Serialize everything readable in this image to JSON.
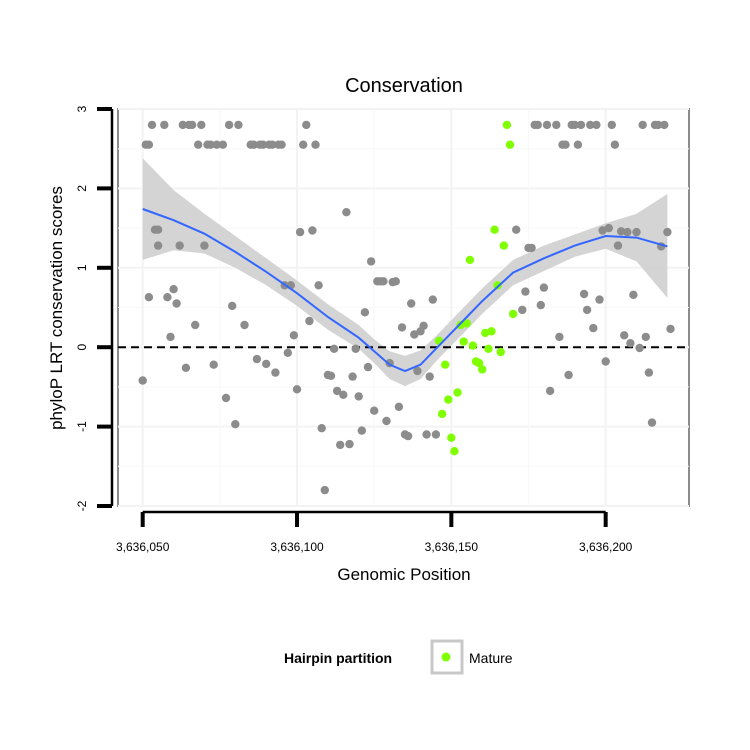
{
  "chart_data": {
    "type": "scatter",
    "title": "Conservation",
    "xlabel": "Genomic Position",
    "ylabel": "phyloP LRT conservation scores",
    "xlim": [
      3636042,
      3636227
    ],
    "ylim": [
      -2,
      3
    ],
    "x_ticks": [
      3636050,
      3636100,
      3636150,
      3636200
    ],
    "x_tick_labels": [
      "3,636,050",
      "3,636,100",
      "3,636,150",
      "3,636,200"
    ],
    "y_ticks": [
      -2,
      -1,
      0,
      1,
      2,
      3
    ],
    "y_tick_labels": [
      "-2",
      "-1",
      "0",
      "1",
      "2",
      "3"
    ],
    "reference_line": {
      "y": 0,
      "style": "dashed",
      "color": "#000000"
    },
    "legend": {
      "title": "Hairpin partition",
      "entries": [
        {
          "label": "Mature",
          "color": "#7fff00"
        }
      ]
    },
    "colors": {
      "background_points": "#8c8c8c",
      "mature_points": "#7fff00",
      "smooth_line": "#3366ff",
      "ribbon": "#cccccc"
    },
    "series": [
      {
        "name": "Background",
        "color": "#8c8c8c",
        "points": [
          [
            3636050,
            -0.42
          ],
          [
            3636051,
            2.55
          ],
          [
            3636052,
            2.55
          ],
          [
            3636052,
            0.63
          ],
          [
            3636053,
            2.8
          ],
          [
            3636054,
            1.48
          ],
          [
            3636055,
            1.48
          ],
          [
            3636055,
            1.28
          ],
          [
            3636057,
            2.8
          ],
          [
            3636058,
            0.63
          ],
          [
            3636059,
            0.13
          ],
          [
            3636060,
            0.73
          ],
          [
            3636061,
            0.55
          ],
          [
            3636062,
            1.28
          ],
          [
            3636063,
            2.8
          ],
          [
            3636064,
            -0.26
          ],
          [
            3636065,
            2.8
          ],
          [
            3636066,
            2.8
          ],
          [
            3636067,
            0.28
          ],
          [
            3636068,
            2.55
          ],
          [
            3636069,
            2.8
          ],
          [
            3636070,
            1.28
          ],
          [
            3636071,
            2.55
          ],
          [
            3636072,
            2.55
          ],
          [
            3636073,
            -0.22
          ],
          [
            3636074,
            2.55
          ],
          [
            3636076,
            2.55
          ],
          [
            3636077,
            -0.64
          ],
          [
            3636078,
            2.8
          ],
          [
            3636079,
            0.52
          ],
          [
            3636080,
            -0.97
          ],
          [
            3636081,
            2.8
          ],
          [
            3636083,
            0.28
          ],
          [
            3636085,
            2.55
          ],
          [
            3636086,
            2.55
          ],
          [
            3636087,
            -0.15
          ],
          [
            3636088,
            2.55
          ],
          [
            3636089,
            2.55
          ],
          [
            3636090,
            -0.21
          ],
          [
            3636091,
            2.55
          ],
          [
            3636092,
            2.55
          ],
          [
            3636093,
            -0.32
          ],
          [
            3636094,
            2.55
          ],
          [
            3636095,
            2.55
          ],
          [
            3636096,
            0.78
          ],
          [
            3636097,
            -0.07
          ],
          [
            3636098,
            0.78
          ],
          [
            3636099,
            0.15
          ],
          [
            3636100,
            -0.53
          ],
          [
            3636101,
            1.45
          ],
          [
            3636102,
            2.55
          ],
          [
            3636103,
            2.8
          ],
          [
            3636104,
            0.33
          ],
          [
            3636105,
            1.47
          ],
          [
            3636106,
            2.55
          ],
          [
            3636107,
            0.78
          ],
          [
            3636108,
            -1.02
          ],
          [
            3636109,
            -1.8
          ],
          [
            3636110,
            -0.35
          ],
          [
            3636111,
            -0.36
          ],
          [
            3636112,
            -0.02
          ],
          [
            3636113,
            -0.55
          ],
          [
            3636114,
            -1.23
          ],
          [
            3636115,
            -0.6
          ],
          [
            3636116,
            1.7
          ],
          [
            3636117,
            -1.22
          ],
          [
            3636118,
            -0.37
          ],
          [
            3636119,
            -0.02
          ],
          [
            3636120,
            -0.62
          ],
          [
            3636121,
            -1.05
          ],
          [
            3636122,
            0.44
          ],
          [
            3636123,
            -0.25
          ],
          [
            3636124,
            1.08
          ],
          [
            3636125,
            -0.8
          ],
          [
            3636126,
            0.83
          ],
          [
            3636127,
            0.83
          ],
          [
            3636128,
            0.83
          ],
          [
            3636129,
            -0.93
          ],
          [
            3636130,
            -0.2
          ],
          [
            3636131,
            0.82
          ],
          [
            3636132,
            0.83
          ],
          [
            3636133,
            -0.75
          ],
          [
            3636134,
            0.25
          ],
          [
            3636135,
            -1.1
          ],
          [
            3636136,
            -1.12
          ],
          [
            3636137,
            0.55
          ],
          [
            3636138,
            0.16
          ],
          [
            3636139,
            -0.3
          ],
          [
            3636140,
            0.2
          ],
          [
            3636141,
            0.27
          ],
          [
            3636142,
            -1.1
          ],
          [
            3636143,
            -0.37
          ],
          [
            3636144,
            0.6
          ],
          [
            3636145,
            -1.1
          ],
          [
            3636171,
            1.48
          ],
          [
            3636173,
            0.47
          ],
          [
            3636174,
            0.7
          ],
          [
            3636175,
            1.25
          ],
          [
            3636176,
            1.25
          ],
          [
            3636177,
            2.8
          ],
          [
            3636178,
            2.8
          ],
          [
            3636179,
            0.53
          ],
          [
            3636180,
            0.75
          ],
          [
            3636181,
            2.8
          ],
          [
            3636182,
            -0.55
          ],
          [
            3636184,
            2.8
          ],
          [
            3636185,
            0.13
          ],
          [
            3636186,
            2.55
          ],
          [
            3636187,
            2.55
          ],
          [
            3636188,
            -0.35
          ],
          [
            3636189,
            2.8
          ],
          [
            3636190,
            2.8
          ],
          [
            3636191,
            2.55
          ],
          [
            3636192,
            2.8
          ],
          [
            3636193,
            0.67
          ],
          [
            3636194,
            0.47
          ],
          [
            3636195,
            2.8
          ],
          [
            3636196,
            0.24
          ],
          [
            3636197,
            2.8
          ],
          [
            3636198,
            0.6
          ],
          [
            3636199,
            1.47
          ],
          [
            3636200,
            -0.18
          ],
          [
            3636201,
            1.5
          ],
          [
            3636202,
            2.8
          ],
          [
            3636203,
            2.55
          ],
          [
            3636204,
            1.28
          ],
          [
            3636205,
            1.46
          ],
          [
            3636206,
            0.15
          ],
          [
            3636207,
            1.45
          ],
          [
            3636208,
            0.05
          ],
          [
            3636209,
            0.66
          ],
          [
            3636210,
            1.45
          ],
          [
            3636211,
            -0.01
          ],
          [
            3636212,
            2.8
          ],
          [
            3636213,
            0.13
          ],
          [
            3636214,
            -0.32
          ],
          [
            3636215,
            -0.95
          ],
          [
            3636216,
            2.8
          ],
          [
            3636217,
            2.8
          ],
          [
            3636218,
            1.27
          ],
          [
            3636219,
            2.8
          ],
          [
            3636220,
            1.45
          ],
          [
            3636221,
            0.23
          ]
        ]
      },
      {
        "name": "Mature",
        "color": "#7fff00",
        "points": [
          [
            3636146,
            0.08
          ],
          [
            3636147,
            -0.84
          ],
          [
            3636148,
            -0.22
          ],
          [
            3636149,
            -0.66
          ],
          [
            3636150,
            -1.14
          ],
          [
            3636151,
            -1.31
          ],
          [
            3636152,
            -0.57
          ],
          [
            3636153,
            0.28
          ],
          [
            3636154,
            0.07
          ],
          [
            3636155,
            0.3
          ],
          [
            3636156,
            1.1
          ],
          [
            3636157,
            0.02
          ],
          [
            3636158,
            -0.18
          ],
          [
            3636159,
            -0.2
          ],
          [
            3636160,
            -0.28
          ],
          [
            3636161,
            0.18
          ],
          [
            3636162,
            -0.02
          ],
          [
            3636163,
            0.2
          ],
          [
            3636164,
            1.48
          ],
          [
            3636165,
            0.78
          ],
          [
            3636166,
            -0.06
          ],
          [
            3636167,
            1.28
          ],
          [
            3636168,
            2.8
          ],
          [
            3636169,
            2.55
          ],
          [
            3636170,
            0.42
          ]
        ]
      }
    ],
    "smooth": {
      "name": "loess fit",
      "color": "#3366ff",
      "x": [
        3636050,
        3636060,
        3636070,
        3636080,
        3636090,
        3636100,
        3636110,
        3636120,
        3636125,
        3636130,
        3636135,
        3636140,
        3636145,
        3636150,
        3636155,
        3636160,
        3636165,
        3636170,
        3636180,
        3636190,
        3636200,
        3636210,
        3636220
      ],
      "y": [
        1.74,
        1.6,
        1.43,
        1.2,
        0.95,
        0.68,
        0.38,
        0.12,
        -0.05,
        -0.22,
        -0.3,
        -0.22,
        -0.02,
        0.18,
        0.38,
        0.58,
        0.76,
        0.94,
        1.12,
        1.28,
        1.4,
        1.38,
        1.27
      ],
      "lower": [
        1.1,
        1.22,
        1.18,
        1.0,
        0.78,
        0.52,
        0.22,
        -0.02,
        -0.2,
        -0.4,
        -0.49,
        -0.4,
        -0.18,
        0.02,
        0.22,
        0.42,
        0.6,
        0.78,
        0.96,
        1.14,
        1.24,
        1.08,
        0.62
      ],
      "upper": [
        2.38,
        1.98,
        1.68,
        1.4,
        1.12,
        0.84,
        0.54,
        0.28,
        0.1,
        -0.05,
        -0.11,
        -0.04,
        0.14,
        0.34,
        0.54,
        0.74,
        0.92,
        1.1,
        1.28,
        1.42,
        1.56,
        1.68,
        1.93
      ]
    }
  }
}
